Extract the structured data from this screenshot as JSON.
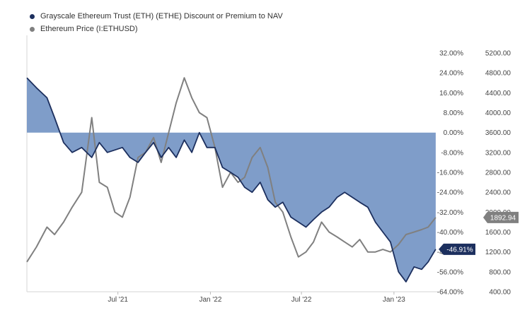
{
  "legend": [
    {
      "label": "Grayscale Ethereum Trust (ETH) (ETHE) Discount or Premium to NAV",
      "color": "#1c2f5e"
    },
    {
      "label": "Ethereum Price (I:ETHUSD)",
      "color": "#808080"
    }
  ],
  "chart_data": {
    "type": "line",
    "x_ticks": [
      "Jul '21",
      "Jan '22",
      "Jul '22",
      "Jan '23"
    ],
    "y_left": {
      "ticks": [
        "32.00%",
        "24.00%",
        "16.00%",
        "8.00%",
        "0.00%",
        "-8.00%",
        "-16.00%",
        "-24.00%",
        "-32.00%",
        "-40.00%",
        "-48.00%",
        "-56.00%",
        "-64.00%"
      ],
      "range": [
        -64,
        32
      ],
      "unit": "%"
    },
    "y_right": {
      "ticks": [
        "5200.00",
        "4800.00",
        "4400.00",
        "4000.00",
        "3600.00",
        "3200.00",
        "2800.00",
        "2400.00",
        "2000.00",
        "1600.00",
        "1200.00",
        "800.00",
        "400.00"
      ],
      "range": [
        400,
        5200
      ]
    },
    "series": [
      {
        "name": "Grayscale Ethereum Trust (ETH) (ETHE) Discount or Premium to NAV",
        "axis": "left",
        "color": "#1c2f5e",
        "fill": "#7f9dc9",
        "last_value_label": "-46.91%",
        "x": [
          "2021-01-01",
          "2021-01-20",
          "2021-02-10",
          "2021-02-25",
          "2021-03-15",
          "2021-04-01",
          "2021-04-20",
          "2021-05-10",
          "2021-05-25",
          "2021-06-10",
          "2021-06-25",
          "2021-07-10",
          "2021-07-25",
          "2021-08-10",
          "2021-08-25",
          "2021-09-10",
          "2021-09-25",
          "2021-10-10",
          "2021-10-25",
          "2021-11-10",
          "2021-11-25",
          "2021-12-10",
          "2021-12-25",
          "2022-01-10",
          "2022-01-25",
          "2022-02-10",
          "2022-02-25",
          "2022-03-10",
          "2022-03-25",
          "2022-04-10",
          "2022-04-25",
          "2022-05-10",
          "2022-05-25",
          "2022-06-10",
          "2022-06-25",
          "2022-07-10",
          "2022-07-25",
          "2022-08-10",
          "2022-08-25",
          "2022-09-10",
          "2022-09-25",
          "2022-10-10",
          "2022-10-25",
          "2022-11-10",
          "2022-11-25",
          "2022-12-10",
          "2022-12-25",
          "2023-01-10",
          "2023-01-25",
          "2023-02-10",
          "2023-02-25",
          "2023-03-10",
          "2023-03-25"
        ],
        "values": [
          22,
          18,
          14,
          6,
          -4,
          -8,
          -6,
          -10,
          -4,
          -8,
          -7,
          -6,
          -10,
          -12,
          -8,
          -4,
          -10,
          -6,
          -10,
          -3,
          -8,
          0,
          -6,
          -6,
          -14,
          -16,
          -18,
          -22,
          -24,
          -20,
          -27,
          -30,
          -28,
          -34,
          -36,
          -38,
          -35,
          -32,
          -30,
          -26,
          -24,
          -26,
          -28,
          -30,
          -36,
          -40,
          -44,
          -56,
          -60,
          -54,
          -55,
          -52,
          -46.91
        ]
      },
      {
        "name": "Ethereum Price (I:ETHUSD)",
        "axis": "right",
        "color": "#808080",
        "last_value_label": "1892.94",
        "x": [
          "2021-01-01",
          "2021-01-20",
          "2021-02-10",
          "2021-02-25",
          "2021-03-15",
          "2021-04-01",
          "2021-04-20",
          "2021-05-10",
          "2021-05-25",
          "2021-06-10",
          "2021-06-25",
          "2021-07-10",
          "2021-07-25",
          "2021-08-10",
          "2021-08-25",
          "2021-09-10",
          "2021-09-25",
          "2021-10-10",
          "2021-10-25",
          "2021-11-10",
          "2021-11-25",
          "2021-12-10",
          "2021-12-25",
          "2022-01-10",
          "2022-01-25",
          "2022-02-10",
          "2022-02-25",
          "2022-03-10",
          "2022-03-25",
          "2022-04-10",
          "2022-04-25",
          "2022-05-10",
          "2022-05-25",
          "2022-06-10",
          "2022-06-25",
          "2022-07-10",
          "2022-07-25",
          "2022-08-10",
          "2022-08-25",
          "2022-09-10",
          "2022-09-25",
          "2022-10-10",
          "2022-10-25",
          "2022-11-10",
          "2022-11-25",
          "2022-12-10",
          "2022-12-25",
          "2023-01-10",
          "2023-01-25",
          "2023-02-10",
          "2023-02-25",
          "2023-03-10",
          "2023-03-25"
        ],
        "values": [
          1000,
          1300,
          1700,
          1550,
          1800,
          2100,
          2400,
          3900,
          2600,
          2500,
          2000,
          1900,
          2300,
          3100,
          3200,
          3500,
          3000,
          3600,
          4200,
          4700,
          4300,
          4000,
          3900,
          3300,
          2500,
          2800,
          2600,
          2700,
          3100,
          3300,
          2900,
          2200,
          2000,
          1500,
          1100,
          1200,
          1400,
          1800,
          1600,
          1500,
          1400,
          1300,
          1450,
          1200,
          1200,
          1250,
          1200,
          1350,
          1550,
          1600,
          1650,
          1700,
          1892.94
        ]
      }
    ]
  }
}
